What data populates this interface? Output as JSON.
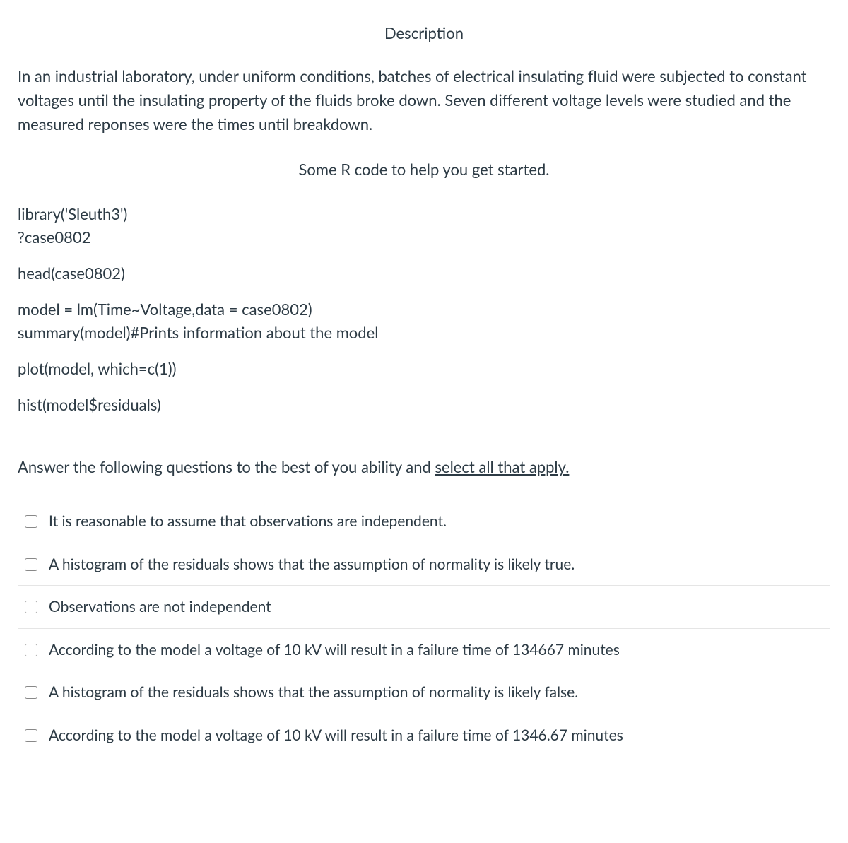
{
  "title": "Description",
  "description": "In an industrial laboratory, under uniform conditions, batches of electrical insulating fluid were subjected to constant voltages until the insulating property of the fluids broke down. Seven different voltage levels were studied and the measured reponses were the times until breakdown.",
  "subtitle": "Some R code to help you get started.",
  "code": {
    "block1": {
      "line1": "library('Sleuth3')",
      "line2": "?case0802"
    },
    "block2": {
      "line1": "head(case0802)"
    },
    "block3": {
      "line1": "model = lm(Time~Voltage,data = case0802)",
      "line2": "summary(model)#Prints information about the model"
    },
    "block4": {
      "line1": "plot(model, which=c(1))"
    },
    "block5": {
      "line1": "hist(model$residuals)"
    }
  },
  "question": {
    "prefix": "Answer the following questions to the best of you ability and ",
    "underlined": "select all that apply."
  },
  "options": [
    "It is reasonable to assume that observations are independent.",
    "A histogram of the residuals shows that the assumption of normality is likely true.",
    "Observations are not independent",
    "According to the model a voltage of 10 kV will result in a failure time of 134667 minutes",
    "A histogram of the residuals shows that the assumption of normality is likely false.",
    "According to the model a voltage of 10 kV will result in a failure time of 1346.67 minutes"
  ],
  "colors": {
    "text": "#2d3b45",
    "border": "#e5e5e5",
    "checkbox_border": "#888",
    "background": "#ffffff"
  },
  "typography": {
    "body_fontsize": 22,
    "option_fontsize": 21
  }
}
